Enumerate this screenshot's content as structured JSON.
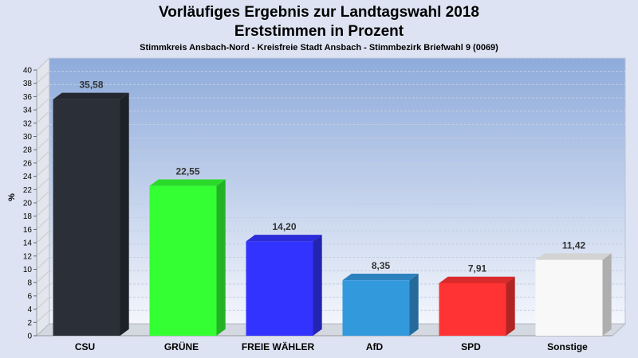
{
  "header": {
    "title_line1": "Vorläufiges Ergebnis zur Landtagswahl 2018",
    "title_line2": "Erststimmen in Prozent",
    "subtitle": "Stimmkreis Ansbach-Nord - Kreisfreie Stadt Ansbach - Stimmbezirk Briefwahl 9 (0069)"
  },
  "chart_data": {
    "type": "bar",
    "title": "Vorläufiges Ergebnis zur Landtagswahl 2018 Erststimmen in Prozent",
    "subtitle": "Stimmkreis Ansbach-Nord - Kreisfreie Stadt Ansbach - Stimmbezirk Briefwahl 9 (0069)",
    "ylabel": "%",
    "xlabel": "",
    "ylim": [
      0,
      40
    ],
    "ytick_step": 2,
    "grid": true,
    "categories": [
      "CSU",
      "GRÜNE",
      "FREIE WÄHLER",
      "AfD",
      "SPD",
      "Sonstige"
    ],
    "values": [
      35.58,
      22.55,
      14.2,
      8.35,
      7.91,
      11.42
    ],
    "value_labels": [
      "35,58",
      "22,55",
      "14,20",
      "8,35",
      "7,91",
      "11,42"
    ],
    "colors": [
      "#2b2f38",
      "#33ff33",
      "#3333ff",
      "#3399dd",
      "#ff3333",
      "#f8f8f8"
    ]
  }
}
